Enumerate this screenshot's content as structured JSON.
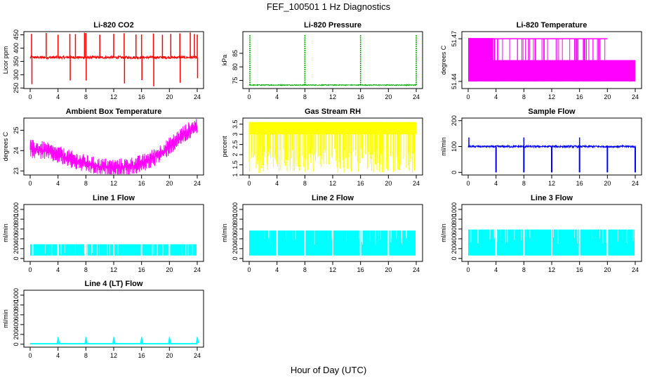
{
  "figure": {
    "title": "FEF_100501  1 Hz Diagnostics",
    "xlabel": "Hour of Day (UTC)"
  },
  "chart_data": [
    {
      "type": "line",
      "title": "Li-820 CO2",
      "ylabel": "Licor ppm",
      "color": "#ff0000",
      "xlim": [
        0,
        24
      ],
      "ylim": [
        248,
        462
      ],
      "xticks": [
        0,
        4,
        8,
        12,
        16,
        20,
        24
      ],
      "yticks": [
        250,
        300,
        350,
        400,
        450
      ],
      "baseline": 365,
      "noise": 5,
      "spikes_up_to": 460,
      "spikes_down_to": 250,
      "spike_hours": [
        0.2,
        2.3,
        4.0,
        5.7,
        6.5,
        7.8,
        8.0,
        10.0,
        12.0,
        13.5,
        15.2,
        16.0,
        17.7,
        19.0,
        20.2,
        21.5,
        23.0,
        23.6,
        24.0
      ]
    },
    {
      "type": "line",
      "title": "Li-820 Pressure",
      "ylabel": "kPa",
      "color": "#00aa00",
      "xlim": [
        0,
        24
      ],
      "ylim": [
        72,
        93
      ],
      "xticks": [
        0,
        4,
        8,
        12,
        16,
        20,
        24
      ],
      "yticks": [
        75,
        80,
        85
      ],
      "baseline": 73.3,
      "noise": 0.3,
      "spikes_up_to": 92,
      "spike_hours": [
        0.1,
        8.0,
        16.0,
        24.0
      ]
    },
    {
      "type": "line",
      "title": "Li-820 Temperature",
      "ylabel": "degrees C",
      "color": "#ff00ff",
      "xlim": [
        0,
        24
      ],
      "ylim": [
        51.435,
        51.475
      ],
      "xticks": [
        0,
        4,
        8,
        12,
        16,
        20,
        24
      ],
      "yticks": [
        51.44,
        51.47
      ],
      "levels": [
        51.44,
        51.47
      ],
      "note_level": 51.455
    },
    {
      "type": "line",
      "title": "Ambient Box Temperature",
      "ylabel": "degrees C",
      "color": "#ff00ff",
      "xlim": [
        0,
        24
      ],
      "ylim": [
        22.8,
        25.6
      ],
      "xticks": [
        0,
        4,
        8,
        12,
        16,
        20,
        24
      ],
      "yticks": [
        23.0,
        24.0,
        25.0
      ],
      "trend_x": [
        0,
        2,
        4,
        6,
        8,
        10,
        12,
        14,
        16,
        18,
        20,
        22,
        24
      ],
      "trend_y": [
        24.1,
        24.0,
        23.8,
        23.55,
        23.35,
        23.2,
        23.15,
        23.2,
        23.35,
        23.7,
        24.2,
        24.8,
        25.2
      ],
      "noise": 0.45
    },
    {
      "type": "line",
      "title": "Gas Stream RH",
      "ylabel": "percent",
      "color": "#ffff00",
      "xlim": [
        0,
        24
      ],
      "ylim": [
        1.0,
        3.8
      ],
      "xticks": [
        0,
        4,
        8,
        12,
        16,
        20,
        24
      ],
      "yticks": [
        1.0,
        1.5,
        2.0,
        2.5,
        3.0,
        3.5
      ],
      "upper": 3.6,
      "lower": 1.1
    },
    {
      "type": "line",
      "title": "Sample Flow",
      "ylabel": "ml/min",
      "color": "#0000ff",
      "xlim": [
        0,
        24
      ],
      "ylim": [
        -10,
        210
      ],
      "xticks": [
        0,
        4,
        8,
        12,
        16,
        20,
        24
      ],
      "yticks": [
        0,
        100,
        200
      ],
      "baseline": 100,
      "noise": 4,
      "dip_hours": [
        4.0,
        8.0,
        12.0,
        16.0,
        20.0,
        24.0
      ],
      "dip_to": 0,
      "spike_hours": [
        0.1,
        8.0,
        16.0
      ],
      "spike_to": 135
    },
    {
      "type": "area",
      "title": "Line 1 Flow",
      "ylabel": "ml/min",
      "color": "#00ffff",
      "xlim": [
        0,
        24
      ],
      "ylim": [
        -60,
        1100
      ],
      "xticks": [
        0,
        4,
        8,
        12,
        16,
        20,
        24
      ],
      "yticks": [
        0,
        200,
        400,
        600,
        800,
        1000
      ],
      "upper": 290,
      "lower": 60,
      "gap_hours": [
        4.0,
        8.0,
        12.0,
        16.0,
        20.0,
        24.0
      ]
    },
    {
      "type": "area",
      "title": "Line 2 Flow",
      "ylabel": "ml/min",
      "color": "#00ffff",
      "xlim": [
        0,
        24
      ],
      "ylim": [
        -60,
        1100
      ],
      "xticks": [
        0,
        4,
        8,
        12,
        16,
        20,
        24
      ],
      "yticks": [
        0,
        200,
        400,
        600,
        800,
        1000
      ],
      "upper": 570,
      "lower": 60,
      "gap_hours": [
        4.0,
        8.0,
        12.0,
        16.0,
        20.0,
        24.0
      ]
    },
    {
      "type": "area",
      "title": "Line 3 Flow",
      "ylabel": "ml/min",
      "color": "#00ffff",
      "xlim": [
        0,
        24
      ],
      "ylim": [
        -60,
        1100
      ],
      "xticks": [
        0,
        4,
        8,
        12,
        16,
        20,
        24
      ],
      "yticks": [
        0,
        200,
        400,
        600,
        800,
        1000
      ],
      "upper": 590,
      "lower": 60,
      "gap_hours": [
        4.0,
        8.0,
        12.0,
        16.0,
        20.0,
        24.0
      ]
    },
    {
      "type": "line",
      "title": "Line 4 (LT) Flow",
      "ylabel": "ml/min",
      "color": "#00ffff",
      "xlim": [
        0,
        24
      ],
      "ylim": [
        -60,
        1100
      ],
      "xticks": [
        0,
        4,
        8,
        12,
        16,
        20,
        24
      ],
      "yticks": [
        0,
        200,
        400,
        600,
        800,
        1000
      ],
      "baseline": 10,
      "spike_hours": [
        4.0,
        8.0,
        12.0,
        16.0,
        20.0,
        24.0
      ],
      "spike_to": 150
    }
  ]
}
